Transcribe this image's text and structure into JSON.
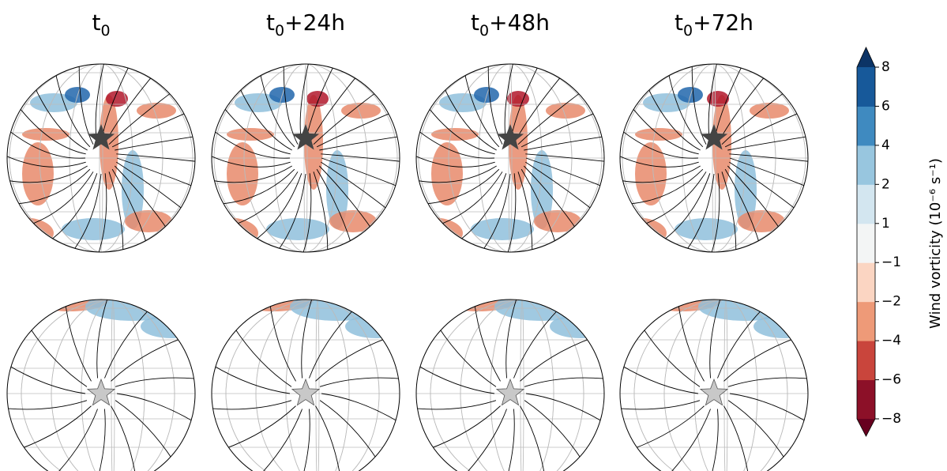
{
  "panels": [
    {
      "title": {
        "base": "t",
        "sub": "0"
      }
    },
    {
      "title": {
        "base": "t",
        "sub": "0",
        "suffix": "+24h"
      }
    },
    {
      "title": {
        "base": "t",
        "sub": "0",
        "suffix": "+48h"
      }
    },
    {
      "title": {
        "base": "t",
        "sub": "0",
        "suffix": "+72h"
      }
    }
  ],
  "colorbar": {
    "label": "Wind vorticity (10⁻⁶ s⁻¹)",
    "ticks": [
      {
        "value": -8,
        "label": "−8"
      },
      {
        "value": -6,
        "label": "−6"
      },
      {
        "value": -4,
        "label": "−4"
      },
      {
        "value": -2,
        "label": "−2"
      },
      {
        "value": -1,
        "label": "−1"
      },
      1,
      2,
      4,
      6,
      8
    ],
    "colors": [
      "#8c1028",
      "#c9453c",
      "#ee9a78",
      "#fbd5c2",
      "#f3f5f5",
      "#d3e6f0",
      "#98c6df",
      "#3f8ac0",
      "#17599a"
    ],
    "under_color": "#67001f",
    "over_color": "#0c3466"
  }
}
